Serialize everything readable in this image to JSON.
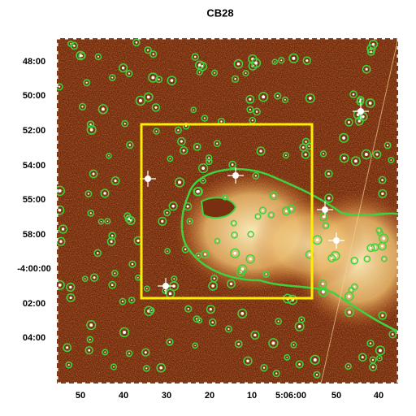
{
  "title": "CB28",
  "y_tick_labels": [
    "48:00",
    "50:00",
    "52:00",
    "54:00",
    "55:00",
    "58:00",
    "-4:00:00",
    "02:00",
    "04:00"
  ],
  "x_tick_labels": [
    "50",
    "40",
    "30",
    "20",
    "10",
    "5:06:00",
    "50",
    "40"
  ]
}
